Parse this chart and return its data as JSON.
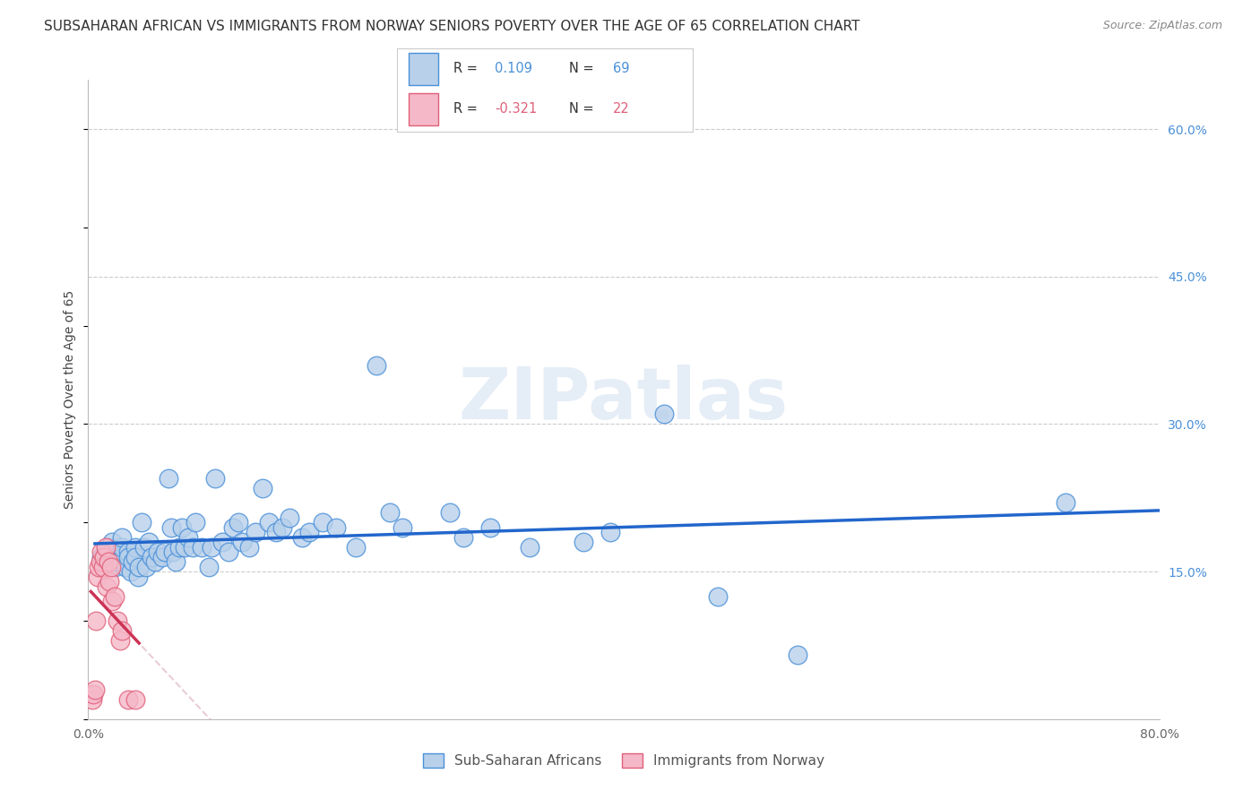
{
  "title": "SUBSAHARAN AFRICAN VS IMMIGRANTS FROM NORWAY SENIORS POVERTY OVER THE AGE OF 65 CORRELATION CHART",
  "source": "Source: ZipAtlas.com",
  "ylabel": "Seniors Poverty Over the Age of 65",
  "watermark": "ZIPatlas",
  "xlim": [
    0.0,
    0.8
  ],
  "ylim": [
    0.0,
    0.65
  ],
  "R_blue": 0.109,
  "N_blue": 69,
  "R_pink": -0.321,
  "N_pink": 22,
  "legend_label_blue": "Sub-Saharan Africans",
  "legend_label_pink": "Immigrants from Norway",
  "blue_fill": "#b8d0ea",
  "blue_edge": "#4a90d9",
  "pink_fill": "#f5b8c8",
  "pink_edge": "#e0607a",
  "blue_line": "#2266cc",
  "pink_line": "#cc3355",
  "pink_line_dashed": "#ddaabb",
  "grid_color": "#cccccc",
  "background": "#ffffff",
  "scatter_blue_x": [
    0.01,
    0.015,
    0.018,
    0.02,
    0.022,
    0.025,
    0.025,
    0.028,
    0.03,
    0.03,
    0.032,
    0.033,
    0.035,
    0.035,
    0.037,
    0.038,
    0.04,
    0.042,
    0.043,
    0.045,
    0.047,
    0.05,
    0.052,
    0.055,
    0.057,
    0.06,
    0.062,
    0.063,
    0.065,
    0.068,
    0.07,
    0.072,
    0.075,
    0.078,
    0.08,
    0.085,
    0.09,
    0.092,
    0.095,
    0.1,
    0.105,
    0.108,
    0.112,
    0.115,
    0.12,
    0.125,
    0.13,
    0.135,
    0.14,
    0.145,
    0.15,
    0.16,
    0.165,
    0.175,
    0.185,
    0.2,
    0.215,
    0.225,
    0.235,
    0.27,
    0.28,
    0.3,
    0.33,
    0.37,
    0.39,
    0.43,
    0.47,
    0.53,
    0.73
  ],
  "scatter_blue_y": [
    0.165,
    0.175,
    0.18,
    0.155,
    0.16,
    0.175,
    0.185,
    0.155,
    0.17,
    0.165,
    0.15,
    0.16,
    0.175,
    0.165,
    0.145,
    0.155,
    0.2,
    0.175,
    0.155,
    0.18,
    0.165,
    0.16,
    0.17,
    0.165,
    0.17,
    0.245,
    0.195,
    0.17,
    0.16,
    0.175,
    0.195,
    0.175,
    0.185,
    0.175,
    0.2,
    0.175,
    0.155,
    0.175,
    0.245,
    0.18,
    0.17,
    0.195,
    0.2,
    0.18,
    0.175,
    0.19,
    0.235,
    0.2,
    0.19,
    0.195,
    0.205,
    0.185,
    0.19,
    0.2,
    0.195,
    0.175,
    0.36,
    0.21,
    0.195,
    0.21,
    0.185,
    0.195,
    0.175,
    0.18,
    0.19,
    0.31,
    0.125,
    0.065,
    0.22
  ],
  "scatter_pink_x": [
    0.003,
    0.004,
    0.005,
    0.006,
    0.007,
    0.008,
    0.009,
    0.01,
    0.011,
    0.012,
    0.013,
    0.014,
    0.015,
    0.016,
    0.017,
    0.018,
    0.02,
    0.022,
    0.024,
    0.025,
    0.03,
    0.035
  ],
  "scatter_pink_y": [
    0.02,
    0.025,
    0.03,
    0.1,
    0.145,
    0.155,
    0.16,
    0.17,
    0.155,
    0.165,
    0.175,
    0.135,
    0.16,
    0.14,
    0.155,
    0.12,
    0.125,
    0.1,
    0.08,
    0.09,
    0.02,
    0.02
  ],
  "title_fontsize": 11,
  "source_fontsize": 9,
  "axis_label_fontsize": 10,
  "tick_fontsize": 10,
  "legend_fontsize": 11
}
